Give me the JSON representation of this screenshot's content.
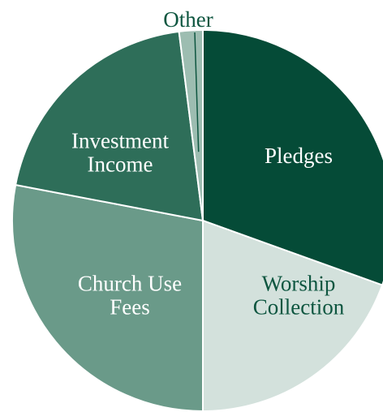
{
  "chart_data": {
    "type": "pie",
    "slices": [
      {
        "label": "Pledges",
        "lines": [
          "Pledges"
        ],
        "value": 30.5,
        "color": "#054b37",
        "label_color": "#ffffff"
      },
      {
        "label": "Worship Collection",
        "lines": [
          "Worship",
          "Collection"
        ],
        "value": 19.5,
        "color": "#d3e1dc",
        "label_color": "#0e5640"
      },
      {
        "label": "Church Use Fees",
        "lines": [
          "Church Use",
          "Fees"
        ],
        "value": 28.0,
        "color": "#6a9a89",
        "label_color": "#ffffff"
      },
      {
        "label": "Investment Income",
        "lines": [
          "Investment",
          "Income"
        ],
        "value": 20.0,
        "color": "#2e6e59",
        "label_color": "#ffffff"
      },
      {
        "label": "Other",
        "lines": [
          "Other"
        ],
        "value": 2.0,
        "color": "#9dbdb1",
        "label_color": "#0e5640"
      }
    ],
    "start_angle_deg": 0,
    "direction": "clockwise",
    "slice_stroke_color": "#ffffff"
  }
}
